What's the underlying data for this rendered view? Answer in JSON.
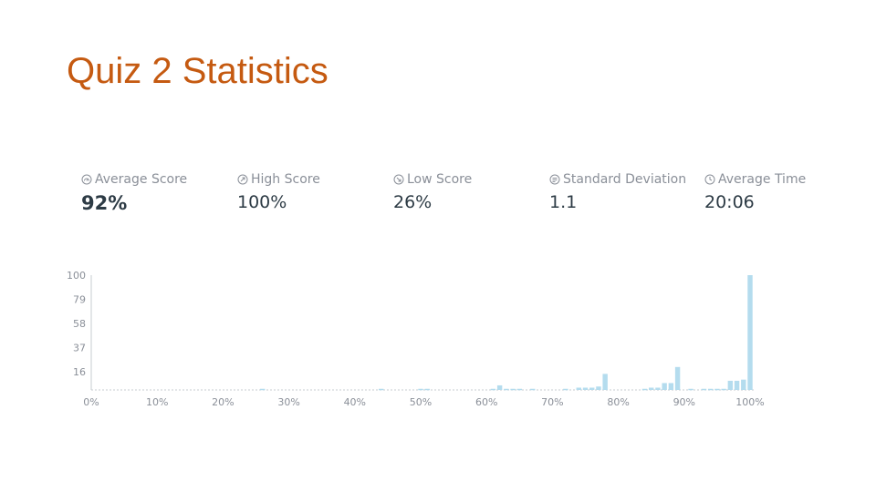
{
  "title": "Quiz 2 Statistics",
  "stats": [
    {
      "label": "Average Score",
      "value": "92%",
      "icon": "gauge-icon"
    },
    {
      "label": "High Score",
      "value": "100%",
      "icon": "arrow-up-right-icon"
    },
    {
      "label": "Low Score",
      "value": "26%",
      "icon": "arrow-down-right-icon"
    },
    {
      "label": "Standard Deviation",
      "value": "1.1",
      "icon": "deviation-icon"
    },
    {
      "label": "Average Time",
      "value": "20:06",
      "icon": "clock-icon"
    }
  ],
  "colors": {
    "title": "#c55a11",
    "bar": "#b4dcee",
    "text": "#2d3b45",
    "muted": "#8a8f98"
  },
  "chart_data": {
    "type": "bar",
    "xlabel": "",
    "ylabel": "",
    "x_ticks": [
      "0%",
      "10%",
      "20%",
      "30%",
      "40%",
      "50%",
      "60%",
      "70%",
      "80%",
      "90%",
      "100%"
    ],
    "y_ticks": [
      "100",
      "79",
      "58",
      "37",
      "16"
    ],
    "ylim": [
      0,
      100
    ],
    "xlim": [
      0,
      100
    ],
    "grid": false,
    "x": [
      26,
      44,
      50,
      51,
      61,
      62,
      63,
      64,
      65,
      67,
      72,
      74,
      75,
      76,
      77,
      78,
      84,
      85,
      86,
      87,
      88,
      89,
      91,
      93,
      94,
      95,
      96,
      97,
      98,
      99,
      100
    ],
    "values": [
      1,
      1,
      1,
      1,
      1,
      4,
      1,
      1,
      1,
      1,
      1,
      2,
      2,
      2,
      3,
      14,
      1,
      2,
      2,
      6,
      6,
      20,
      1,
      1,
      1,
      1,
      1,
      8,
      8,
      9,
      100
    ]
  }
}
